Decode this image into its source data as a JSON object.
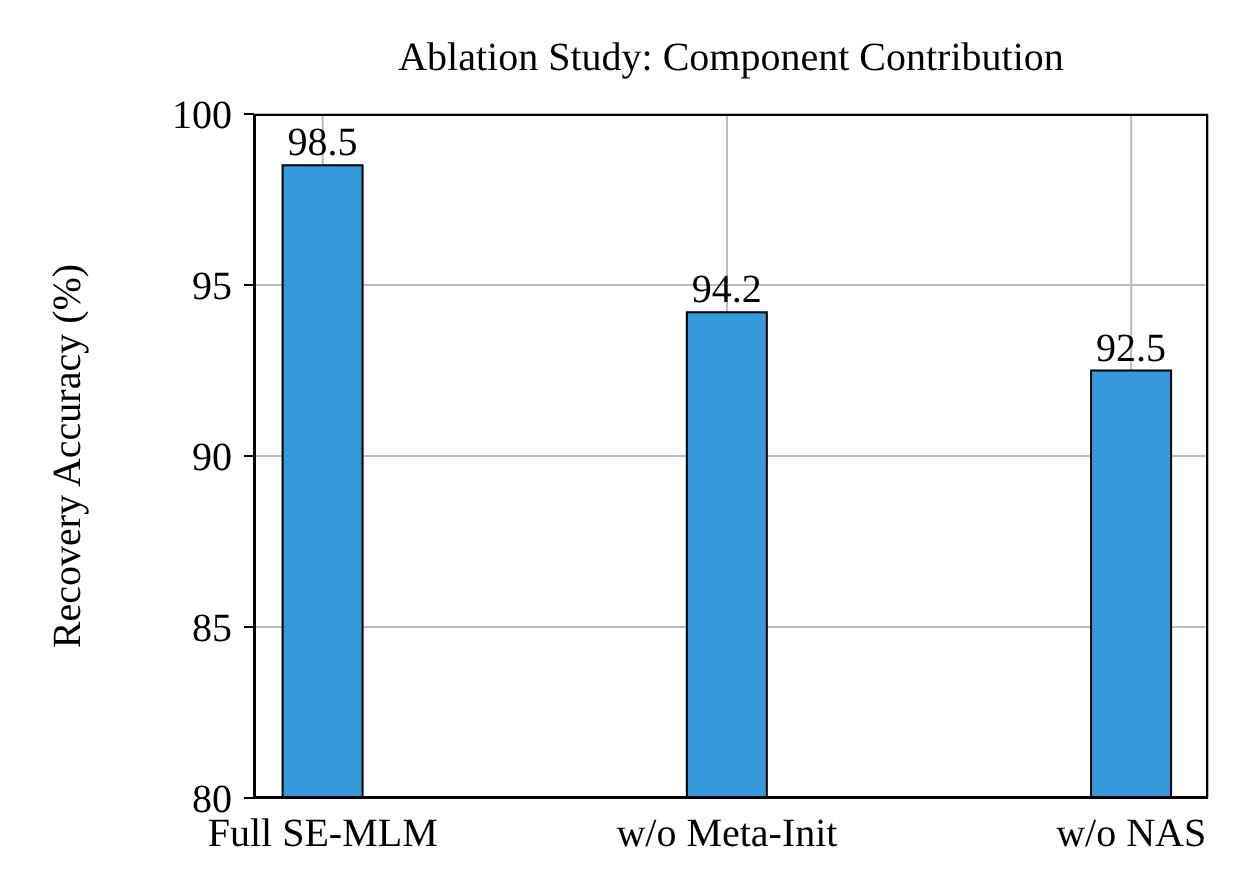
{
  "chart_data": {
    "type": "bar",
    "title": "Ablation Study: Component Contribution",
    "ylabel": "Recovery Accuracy (%)",
    "categories": [
      "Full SE-MLM",
      "w/o Meta-Init",
      "w/o NAS"
    ],
    "values": [
      98.5,
      94.2,
      92.5
    ],
    "color": "#3498db",
    "ylim": [
      80,
      100
    ],
    "yticks": [
      80,
      85,
      90,
      95,
      100
    ],
    "grid": true,
    "data_labels": true
  }
}
